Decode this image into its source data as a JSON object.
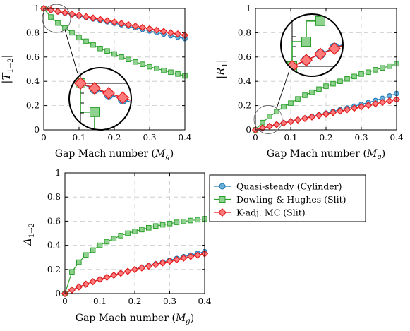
{
  "chart_data": [
    {
      "type": "line",
      "id": "top-left",
      "xlabel_text": "Gap Mach number (",
      "xlabel_sym": "M",
      "xlabel_sub": "g",
      "xlabel_end": ")",
      "ylabel_sym": "|T",
      "ylabel_sub": "1→2",
      "ylabel_end": "|",
      "xlim": [
        0,
        0.4
      ],
      "ylim": [
        0,
        1
      ],
      "xticks": [
        "0",
        "0.1",
        "0.2",
        "0.3",
        "0.4"
      ],
      "yticks": [
        "0",
        "0.2",
        "0.4",
        "0.6",
        "0.8",
        "1"
      ],
      "grid": true,
      "inset_zoom": true,
      "series": [
        {
          "name": "Quasi-steady (Cylinder)",
          "color": "#1f77b4",
          "fill": "#6baed6",
          "marker": "circle",
          "x": [
            0.0,
            0.02,
            0.04,
            0.06,
            0.08,
            0.1,
            0.12,
            0.14,
            0.16,
            0.18,
            0.2,
            0.22,
            0.24,
            0.26,
            0.28,
            0.3,
            0.32,
            0.34,
            0.36,
            0.38,
            0.4
          ],
          "y": [
            1.0,
            0.986,
            0.973,
            0.961,
            0.949,
            0.938,
            0.926,
            0.914,
            0.902,
            0.89,
            0.878,
            0.866,
            0.854,
            0.841,
            0.828,
            0.815,
            0.802,
            0.789,
            0.776,
            0.764,
            0.752
          ]
        },
        {
          "name": "Dowling & Hughes (Slit)",
          "color": "#2ca02c",
          "fill": "#8fd18f",
          "marker": "square",
          "x": [
            0.0,
            0.02,
            0.04,
            0.06,
            0.08,
            0.1,
            0.12,
            0.14,
            0.16,
            0.18,
            0.2,
            0.22,
            0.24,
            0.26,
            0.28,
            0.3,
            0.32,
            0.34,
            0.36,
            0.38,
            0.4
          ],
          "y": [
            1.0,
            0.93,
            0.88,
            0.84,
            0.8,
            0.76,
            0.73,
            0.7,
            0.67,
            0.65,
            0.625,
            0.6,
            0.58,
            0.56,
            0.54,
            0.52,
            0.505,
            0.49,
            0.475,
            0.46,
            0.445
          ]
        },
        {
          "name": "K-adj. MC (Slit)",
          "color": "#e31a1c",
          "fill": "#ff7b7b",
          "marker": "diamond",
          "x": [
            0.0,
            0.02,
            0.04,
            0.06,
            0.08,
            0.1,
            0.12,
            0.14,
            0.16,
            0.18,
            0.2,
            0.22,
            0.24,
            0.26,
            0.28,
            0.3,
            0.32,
            0.34,
            0.36,
            0.38,
            0.4
          ],
          "y": [
            1.0,
            0.988,
            0.976,
            0.965,
            0.954,
            0.943,
            0.932,
            0.921,
            0.91,
            0.899,
            0.888,
            0.877,
            0.866,
            0.855,
            0.844,
            0.833,
            0.822,
            0.811,
            0.8,
            0.79,
            0.78
          ]
        }
      ]
    },
    {
      "type": "line",
      "id": "top-right",
      "xlabel_text": "Gap Mach number (",
      "xlabel_sym": "M",
      "xlabel_sub": "g",
      "xlabel_end": ")",
      "ylabel_sym": "|R",
      "ylabel_sub": "1",
      "ylabel_end": "|",
      "xlim": [
        0,
        0.4
      ],
      "ylim": [
        0,
        1
      ],
      "xticks": [
        "0",
        "0.1",
        "0.2",
        "0.3",
        "0.4"
      ],
      "yticks": [
        "0",
        "0.2",
        "0.4",
        "0.6",
        "0.8",
        "1"
      ],
      "grid": true,
      "inset_zoom": true,
      "series": [
        {
          "name": "Quasi-steady (Cylinder)",
          "color": "#1f77b4",
          "fill": "#6baed6",
          "marker": "circle",
          "x": [
            0.0,
            0.02,
            0.04,
            0.06,
            0.08,
            0.1,
            0.12,
            0.14,
            0.16,
            0.18,
            0.2,
            0.22,
            0.24,
            0.26,
            0.28,
            0.3,
            0.32,
            0.34,
            0.36,
            0.38,
            0.4
          ],
          "y": [
            0.0,
            0.015,
            0.03,
            0.045,
            0.058,
            0.07,
            0.083,
            0.097,
            0.11,
            0.124,
            0.138,
            0.152,
            0.166,
            0.18,
            0.195,
            0.21,
            0.225,
            0.242,
            0.26,
            0.28,
            0.3
          ]
        },
        {
          "name": "Dowling & Hughes (Slit)",
          "color": "#2ca02c",
          "fill": "#8fd18f",
          "marker": "square",
          "x": [
            0.0,
            0.02,
            0.04,
            0.06,
            0.08,
            0.1,
            0.12,
            0.14,
            0.16,
            0.18,
            0.2,
            0.22,
            0.24,
            0.26,
            0.28,
            0.3,
            0.32,
            0.34,
            0.36,
            0.38,
            0.4
          ],
          "y": [
            0.0,
            0.06,
            0.11,
            0.15,
            0.19,
            0.22,
            0.255,
            0.285,
            0.31,
            0.335,
            0.36,
            0.38,
            0.4,
            0.42,
            0.44,
            0.46,
            0.475,
            0.495,
            0.51,
            0.525,
            0.545
          ]
        },
        {
          "name": "K-adj. MC (Slit)",
          "color": "#e31a1c",
          "fill": "#ff7b7b",
          "marker": "diamond",
          "x": [
            0.0,
            0.02,
            0.04,
            0.06,
            0.08,
            0.1,
            0.12,
            0.14,
            0.16,
            0.18,
            0.2,
            0.22,
            0.24,
            0.26,
            0.28,
            0.3,
            0.32,
            0.34,
            0.36,
            0.38,
            0.4
          ],
          "y": [
            0.0,
            0.015,
            0.03,
            0.043,
            0.056,
            0.068,
            0.081,
            0.094,
            0.106,
            0.119,
            0.131,
            0.143,
            0.155,
            0.167,
            0.179,
            0.191,
            0.203,
            0.215,
            0.227,
            0.238,
            0.25
          ]
        }
      ]
    },
    {
      "type": "line",
      "id": "bottom",
      "xlabel_text": "Gap Mach number (",
      "xlabel_sym": "M",
      "xlabel_sub": "g",
      "xlabel_end": ")",
      "ylabel_sym": "Δ",
      "ylabel_sub": "1→2",
      "ylabel_end": "",
      "xlim": [
        0,
        0.4
      ],
      "ylim": [
        0,
        1
      ],
      "xticks": [
        "0",
        "0.1",
        "0.2",
        "0.3",
        "0.4"
      ],
      "yticks": [
        "0",
        "0.2",
        "0.4",
        "0.6",
        "0.8",
        "1"
      ],
      "grid": true,
      "inset_zoom": false,
      "series": [
        {
          "name": "Quasi-steady (Cylinder)",
          "color": "#1f77b4",
          "fill": "#6baed6",
          "marker": "circle",
          "x": [
            0.0,
            0.02,
            0.04,
            0.06,
            0.08,
            0.1,
            0.12,
            0.14,
            0.16,
            0.18,
            0.2,
            0.22,
            0.24,
            0.26,
            0.28,
            0.3,
            0.32,
            0.34,
            0.36,
            0.38,
            0.4
          ],
          "y": [
            0.0,
            0.03,
            0.055,
            0.078,
            0.098,
            0.117,
            0.135,
            0.152,
            0.169,
            0.185,
            0.201,
            0.216,
            0.231,
            0.246,
            0.261,
            0.276,
            0.291,
            0.305,
            0.319,
            0.333,
            0.347
          ]
        },
        {
          "name": "Dowling & Hughes (Slit)",
          "color": "#2ca02c",
          "fill": "#8fd18f",
          "marker": "square",
          "x": [
            0.0,
            0.02,
            0.04,
            0.06,
            0.08,
            0.1,
            0.12,
            0.14,
            0.16,
            0.18,
            0.2,
            0.22,
            0.24,
            0.26,
            0.28,
            0.3,
            0.32,
            0.34,
            0.36,
            0.38,
            0.4
          ],
          "y": [
            0.0,
            0.18,
            0.26,
            0.32,
            0.36,
            0.4,
            0.43,
            0.455,
            0.48,
            0.5,
            0.515,
            0.53,
            0.545,
            0.56,
            0.57,
            0.58,
            0.59,
            0.598,
            0.605,
            0.612,
            0.62
          ]
        },
        {
          "name": "K-adj. MC (Slit)",
          "color": "#e31a1c",
          "fill": "#ff7b7b",
          "marker": "diamond",
          "x": [
            0.0,
            0.02,
            0.04,
            0.06,
            0.08,
            0.1,
            0.12,
            0.14,
            0.16,
            0.18,
            0.2,
            0.22,
            0.24,
            0.26,
            0.28,
            0.3,
            0.32,
            0.34,
            0.36,
            0.38,
            0.4
          ],
          "y": [
            0.0,
            0.03,
            0.055,
            0.078,
            0.098,
            0.117,
            0.135,
            0.152,
            0.168,
            0.184,
            0.199,
            0.213,
            0.227,
            0.241,
            0.255,
            0.268,
            0.281,
            0.294,
            0.307,
            0.318,
            0.33
          ]
        }
      ]
    }
  ],
  "legend": {
    "items": [
      {
        "label": "Quasi-steady (Cylinder)",
        "color": "#1f77b4",
        "fill": "#6baed6",
        "marker": "circle"
      },
      {
        "label": "Dowling & Hughes (Slit)",
        "color": "#2ca02c",
        "fill": "#8fd18f",
        "marker": "square"
      },
      {
        "label": "K-adj. MC (Slit)",
        "color": "#e31a1c",
        "fill": "#ff7b7b",
        "marker": "diamond"
      }
    ]
  }
}
